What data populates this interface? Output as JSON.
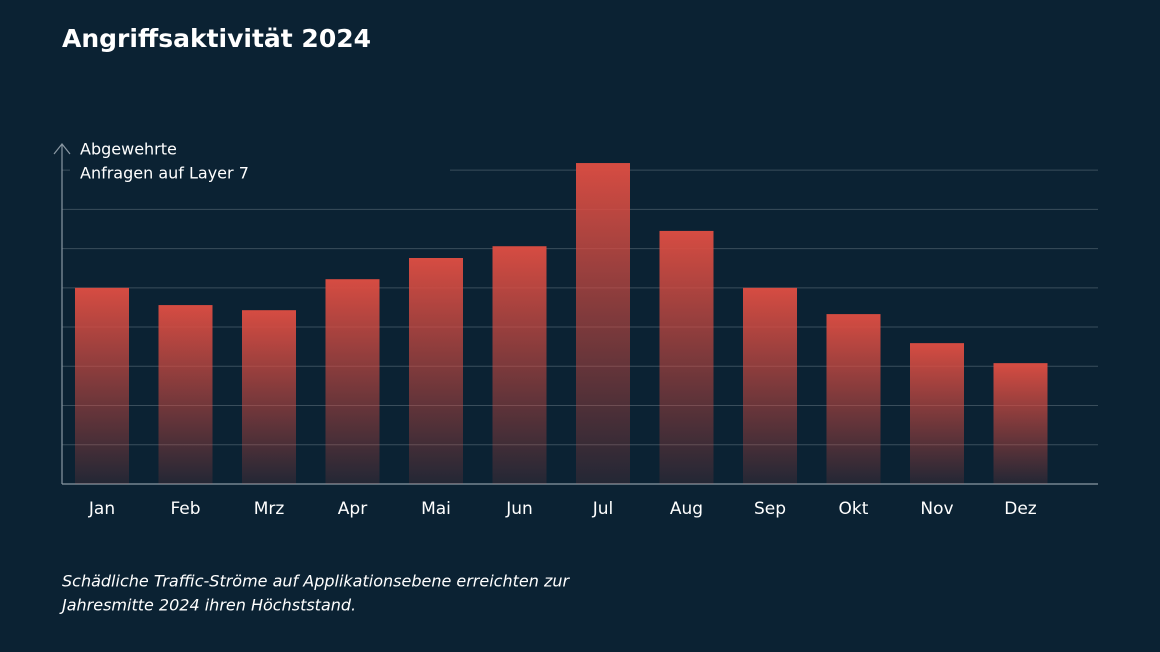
{
  "chart_data": {
    "type": "bar",
    "title": "Angriffsaktivität 2024",
    "y_label": [
      "Abgewehrte",
      "Anfragen auf Layer 7"
    ],
    "categories": [
      "Jan",
      "Feb",
      "Mrz",
      "Apr",
      "Mai",
      "Jun",
      "Jul",
      "Aug",
      "Sep",
      "Okt",
      "Nov",
      "Dez"
    ],
    "values": [
      5.0,
      4.56,
      4.43,
      5.22,
      5.76,
      6.06,
      8.18,
      6.45,
      5.0,
      4.33,
      3.59,
      3.08
    ],
    "color": "#d64c42",
    "ylim": [
      0,
      8.64
    ],
    "yticks": [
      1,
      2,
      3,
      4,
      5,
      6,
      7,
      8
    ],
    "grid": true,
    "note": [
      "Schädliche Traffic-Ströme auf Applikationsebene erreichten zur",
      "Jahresmitte 2024 ihren Höchststand."
    ]
  }
}
